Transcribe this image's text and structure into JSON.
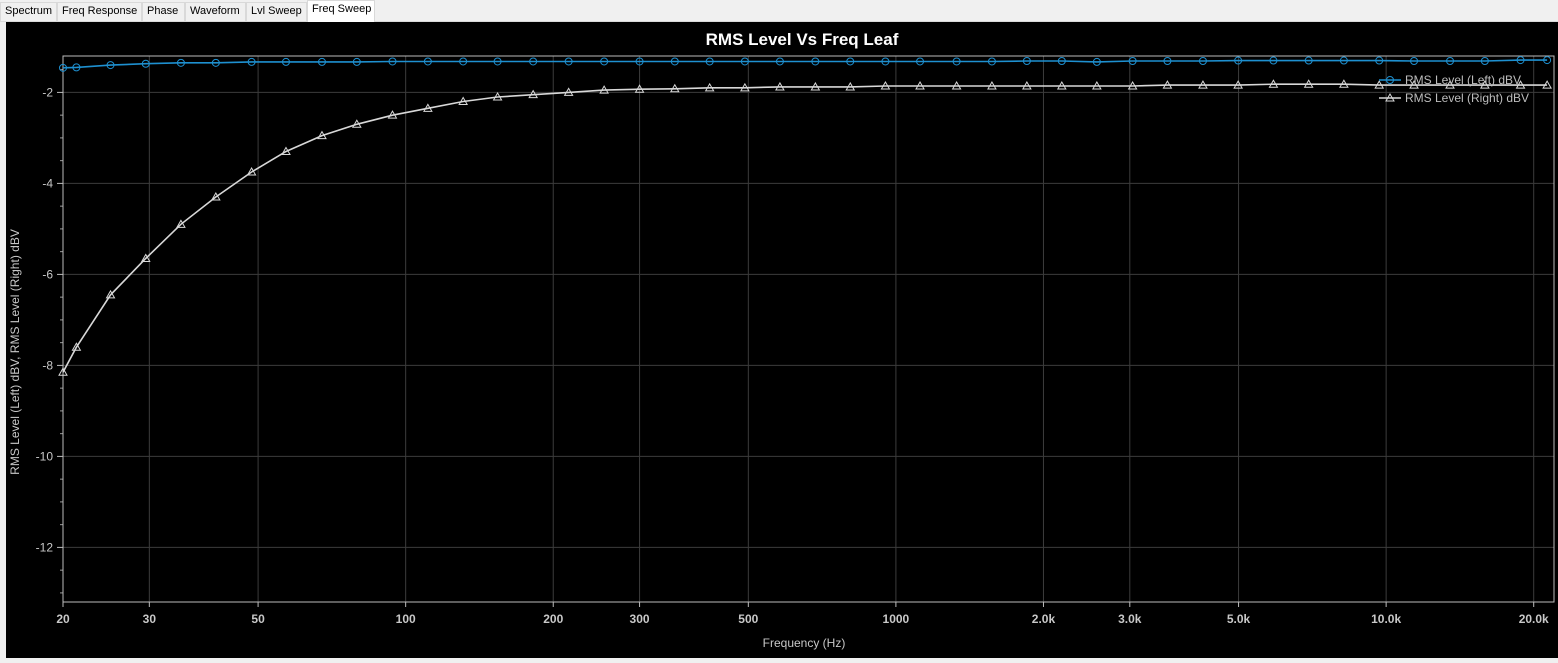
{
  "tabs": [
    {
      "label": "Spectrum",
      "active": false
    },
    {
      "label": "Freq Response",
      "active": false
    },
    {
      "label": "Phase",
      "active": false
    },
    {
      "label": "Waveform",
      "active": false
    },
    {
      "label": "Lvl Sweep",
      "active": false
    },
    {
      "label": "Freq Sweep",
      "active": true
    }
  ],
  "colors": {
    "background": "#000000",
    "grid": "#3c3c3c",
    "axis_text": "#c8c8c8",
    "title": "#ffffff",
    "left_series": "#1e90d0",
    "right_series": "#d8d8d8"
  },
  "chart_data": {
    "type": "line",
    "title": "RMS Level Vs Freq Leaf",
    "xlabel": "Frequency (Hz)",
    "ylabel": "RMS Level (Left) dBV, RMS Level (Right) dBV",
    "xscale": "log",
    "xlim": [
      20,
      22000
    ],
    "ylim": [
      -13.2,
      -1.2
    ],
    "grid": true,
    "legend_position": "top-right",
    "x_tick_values": [
      20,
      30,
      50,
      100,
      200,
      300,
      500,
      1000,
      2000,
      3000,
      5000,
      10000,
      20000
    ],
    "x_tick_labels": [
      "20",
      "30",
      "50",
      "100",
      "200",
      "300",
      "500",
      "1000",
      "2.0k",
      "3.0k",
      "5.0k",
      "10.0k",
      "20.0k"
    ],
    "y_tick_values": [
      -2,
      -4,
      -6,
      -8,
      -10,
      -12
    ],
    "y_tick_labels": [
      "-2",
      "-4",
      "-6",
      "-8",
      "-10",
      "-12"
    ],
    "x": [
      20,
      21.3,
      25,
      29.5,
      34.8,
      41,
      48.5,
      57,
      67.5,
      79.5,
      94,
      111,
      131,
      154,
      182,
      215,
      254,
      300,
      354,
      417,
      492,
      580,
      685,
      807,
      952,
      1120,
      1330,
      1570,
      1850,
      2180,
      2570,
      3040,
      3580,
      4230,
      4990,
      5890,
      6950,
      8200,
      9680,
      11400,
      13500,
      15900,
      18800,
      21300
    ],
    "series": [
      {
        "name": "RMS Level (Left) dBV",
        "marker": "circle",
        "color": "#1e90d0",
        "values": [
          -1.46,
          -1.45,
          -1.4,
          -1.37,
          -1.35,
          -1.35,
          -1.33,
          -1.33,
          -1.33,
          -1.33,
          -1.32,
          -1.32,
          -1.32,
          -1.32,
          -1.32,
          -1.32,
          -1.32,
          -1.32,
          -1.32,
          -1.32,
          -1.32,
          -1.32,
          -1.32,
          -1.32,
          -1.32,
          -1.32,
          -1.32,
          -1.32,
          -1.31,
          -1.31,
          -1.33,
          -1.31,
          -1.31,
          -1.31,
          -1.3,
          -1.3,
          -1.3,
          -1.3,
          -1.3,
          -1.31,
          -1.31,
          -1.31,
          -1.29,
          -1.29
        ]
      },
      {
        "name": "RMS Level (Right) dBV",
        "marker": "triangle",
        "color": "#d8d8d8",
        "values": [
          -8.15,
          -7.6,
          -6.45,
          -5.65,
          -4.9,
          -4.3,
          -3.75,
          -3.3,
          -2.95,
          -2.7,
          -2.5,
          -2.35,
          -2.2,
          -2.1,
          -2.05,
          -2.0,
          -1.95,
          -1.93,
          -1.92,
          -1.9,
          -1.9,
          -1.88,
          -1.88,
          -1.88,
          -1.86,
          -1.86,
          -1.86,
          -1.86,
          -1.86,
          -1.86,
          -1.86,
          -1.86,
          -1.84,
          -1.84,
          -1.84,
          -1.82,
          -1.82,
          -1.82,
          -1.84,
          -1.84,
          -1.84,
          -1.84,
          -1.84,
          -1.84
        ]
      }
    ]
  }
}
